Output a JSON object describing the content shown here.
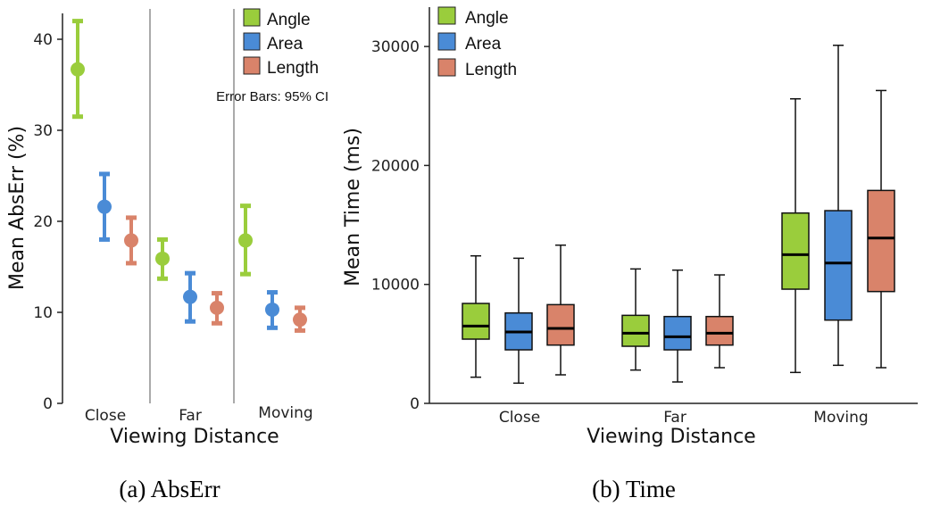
{
  "colors": {
    "angle": "#9acd3c",
    "area": "#4a8bd6",
    "length": "#d9836a",
    "axis": "#222222",
    "divider": "#aaaaaa"
  },
  "chart_data": [
    {
      "type": "errorbar",
      "caption": "(a)  AbsErr",
      "ylabel": "Mean AbsErr (%)",
      "xlabel": "Viewing Distance",
      "ylim": [
        0,
        42
      ],
      "yticks": [
        "0",
        "10",
        "20",
        "30",
        "40"
      ],
      "categories": [
        "Close",
        "Far",
        "Moving"
      ],
      "annotation": "Error Bars: 95% CI",
      "legend": [
        "Angle",
        "Area",
        "Length"
      ],
      "series": [
        {
          "name": "Angle",
          "means": [
            36.7,
            15.9,
            17.9
          ],
          "ci_low": [
            31.5,
            13.7,
            14.2
          ],
          "ci_high": [
            42.0,
            18.0,
            21.7
          ]
        },
        {
          "name": "Area",
          "means": [
            21.6,
            11.7,
            10.3
          ],
          "ci_low": [
            18.0,
            9.0,
            8.3
          ],
          "ci_high": [
            25.2,
            14.3,
            12.2
          ]
        },
        {
          "name": "Length",
          "means": [
            17.9,
            10.5,
            9.2
          ],
          "ci_low": [
            15.4,
            8.8,
            8.0
          ],
          "ci_high": [
            20.4,
            12.1,
            10.5
          ]
        }
      ]
    },
    {
      "type": "boxplot",
      "caption": "(b)  Time",
      "ylabel": "Mean Time (ms)",
      "xlabel": "Viewing Distance",
      "ylim": [
        0,
        33000
      ],
      "yticks": [
        "0",
        "10000",
        "20000",
        "30000"
      ],
      "categories": [
        "Close",
        "Far",
        "Moving"
      ],
      "legend": [
        "Angle",
        "Area",
        "Length"
      ],
      "series": [
        {
          "name": "Angle",
          "boxes": [
            {
              "min": 2200,
              "q1": 5400,
              "median": 6500,
              "q3": 8400,
              "max": 12400
            },
            {
              "min": 2800,
              "q1": 4800,
              "median": 5900,
              "q3": 7400,
              "max": 11300
            },
            {
              "min": 2600,
              "q1": 9600,
              "median": 12500,
              "q3": 16000,
              "max": 25600
            }
          ]
        },
        {
          "name": "Area",
          "boxes": [
            {
              "min": 1700,
              "q1": 4500,
              "median": 6000,
              "q3": 7600,
              "max": 12200
            },
            {
              "min": 1800,
              "q1": 4500,
              "median": 5600,
              "q3": 7300,
              "max": 11200
            },
            {
              "min": 3200,
              "q1": 7000,
              "median": 11800,
              "q3": 16200,
              "max": 30100
            }
          ]
        },
        {
          "name": "Length",
          "boxes": [
            {
              "min": 2400,
              "q1": 4900,
              "median": 6300,
              "q3": 8300,
              "max": 13300
            },
            {
              "min": 3000,
              "q1": 4900,
              "median": 5900,
              "q3": 7300,
              "max": 10800
            },
            {
              "min": 3000,
              "q1": 9400,
              "median": 13900,
              "q3": 17900,
              "max": 26300
            }
          ]
        }
      ]
    }
  ]
}
